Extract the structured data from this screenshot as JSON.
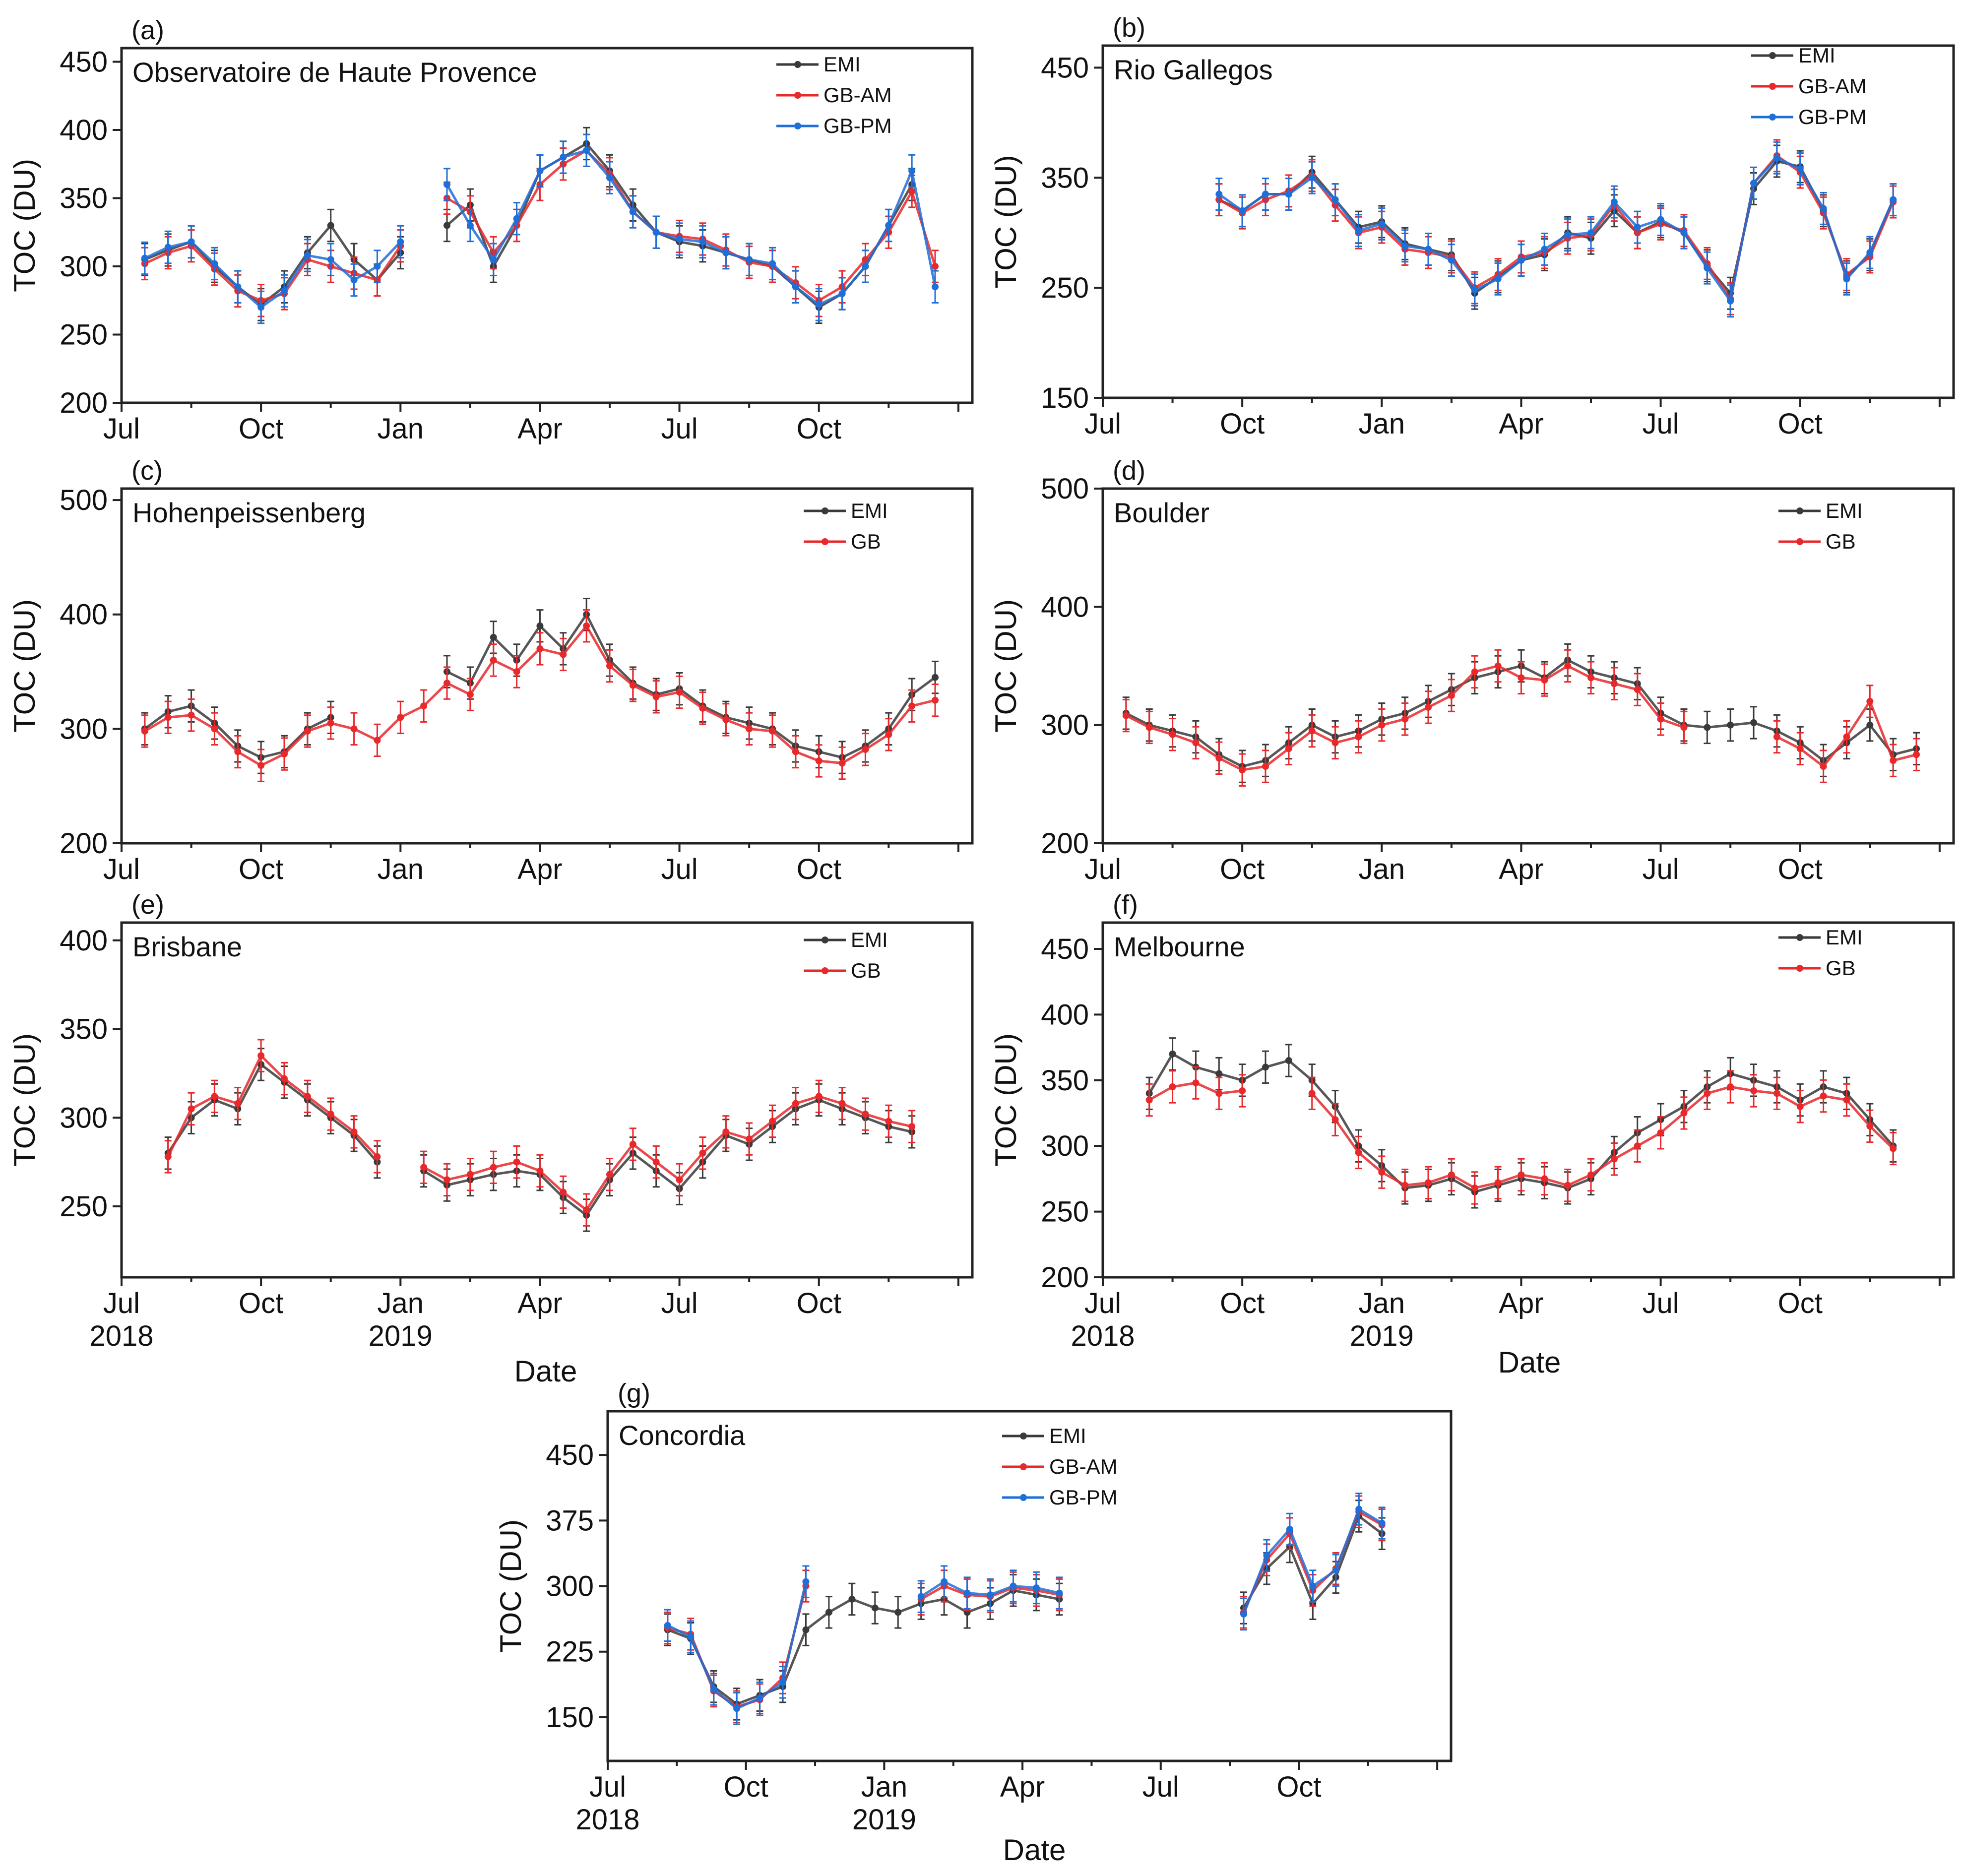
{
  "figure": {
    "date_axis_label": "Date",
    "ylabel": "TOC (DU)",
    "year_labels": [
      "2018",
      "2019"
    ]
  },
  "colors": {
    "EMI": "#3a3a3a",
    "GB": "#e8282b",
    "GB-AM": "#e8282b",
    "GB-PM": "#1f6fd8"
  },
  "chart_data": [
    {
      "type": "line",
      "panel": "(a)",
      "title": "Observatoire de Haute Provence",
      "xlabel": "",
      "ylabel": "TOC (DU)",
      "ylim": [
        200,
        460
      ],
      "yticks": [
        200,
        250,
        300,
        350,
        400,
        450
      ],
      "xticks": [
        "Jul",
        "Oct",
        "Jan",
        "Apr",
        "Jul",
        "Oct"
      ],
      "year_labels": [],
      "legend": [
        "EMI",
        "GB-AM",
        "GB-PM"
      ],
      "months": [
        0.5,
        1,
        1.5,
        2,
        2.5,
        3,
        3.5,
        4,
        4.5,
        5,
        5.5,
        6,
        6.5,
        7,
        7.5,
        8,
        8.5,
        9,
        9.5,
        10,
        10.5,
        11,
        11.5,
        12,
        12.5,
        13,
        13.5,
        14,
        14.5,
        15,
        15.5,
        16,
        16.5,
        17,
        17.5
      ],
      "series": [
        {
          "name": "EMI",
          "values": [
            305,
            312,
            318,
            300,
            285,
            272,
            285,
            310,
            330,
            305,
            290,
            310,
            null,
            330,
            345,
            300,
            330,
            370,
            380,
            390,
            370,
            345,
            325,
            318,
            315,
            310,
            305,
            300,
            285,
            270,
            280,
            300,
            330,
            360,
            null
          ]
        },
        {
          "name": "GB-AM",
          "values": [
            302,
            310,
            315,
            298,
            282,
            275,
            280,
            305,
            300,
            295,
            290,
            315,
            null,
            350,
            340,
            310,
            330,
            360,
            375,
            385,
            368,
            340,
            325,
            322,
            320,
            312,
            303,
            300,
            288,
            275,
            285,
            305,
            325,
            355,
            300
          ]
        },
        {
          "name": "GB-PM",
          "values": [
            306,
            314,
            318,
            302,
            285,
            270,
            282,
            308,
            305,
            290,
            300,
            318,
            null,
            360,
            330,
            305,
            335,
            370,
            380,
            385,
            365,
            340,
            325,
            320,
            318,
            310,
            305,
            302,
            285,
            272,
            280,
            300,
            330,
            370,
            285
          ]
        }
      ]
    },
    {
      "type": "line",
      "panel": "(b)",
      "title": "Rio Gallegos",
      "xlabel": "",
      "ylabel": "TOC (DU)",
      "ylim": [
        150,
        470
      ],
      "yticks": [
        150,
        250,
        350,
        450
      ],
      "xticks": [
        "Jul",
        "Oct",
        "Jan",
        "Apr",
        "Jul",
        "Oct"
      ],
      "year_labels": [],
      "legend": [
        "EMI",
        "GB-AM",
        "GB-PM"
      ],
      "months": [
        2.5,
        3,
        3.5,
        4,
        4.5,
        5,
        5.5,
        6,
        6.5,
        7,
        7.5,
        8,
        8.5,
        9,
        9.5,
        10,
        10.5,
        11,
        11.5,
        12,
        12.5,
        13,
        13.5,
        14,
        14.5,
        15,
        15.5,
        16,
        16.5,
        17
      ],
      "series": [
        {
          "name": "EMI",
          "values": [
            330,
            320,
            335,
            335,
            355,
            330,
            305,
            310,
            290,
            285,
            280,
            245,
            260,
            275,
            280,
            300,
            295,
            320,
            300,
            310,
            300,
            270,
            245,
            340,
            365,
            360,
            320,
            260,
            280,
            330
          ]
        },
        {
          "name": "GB-AM",
          "values": [
            330,
            318,
            330,
            338,
            352,
            325,
            300,
            305,
            285,
            282,
            278,
            250,
            262,
            278,
            282,
            295,
            298,
            325,
            300,
            308,
            302,
            272,
            240,
            345,
            370,
            355,
            318,
            262,
            278,
            328
          ]
        },
        {
          "name": "GB-PM",
          "values": [
            335,
            320,
            335,
            335,
            350,
            330,
            302,
            308,
            288,
            285,
            275,
            248,
            258,
            275,
            285,
            298,
            300,
            328,
            305,
            312,
            300,
            268,
            238,
            345,
            368,
            358,
            322,
            258,
            282,
            330
          ]
        }
      ]
    },
    {
      "type": "line",
      "panel": "(c)",
      "title": "Hohenpeissenberg",
      "xlabel": "",
      "ylabel": "TOC (DU)",
      "ylim": [
        200,
        510
      ],
      "yticks": [
        200,
        300,
        400,
        500
      ],
      "xticks": [
        "Jul",
        "Oct",
        "Jan",
        "Apr",
        "Jul",
        "Oct"
      ],
      "year_labels": [],
      "legend": [
        "EMI",
        "GB"
      ],
      "months": [
        0.5,
        1,
        1.5,
        2,
        2.5,
        3,
        3.5,
        4,
        4.5,
        5,
        5.5,
        6,
        6.5,
        7,
        7.5,
        8,
        8.5,
        9,
        9.5,
        10,
        10.5,
        11,
        11.5,
        12,
        12.5,
        13,
        13.5,
        14,
        14.5,
        15,
        15.5,
        16,
        16.5,
        17,
        17.5
      ],
      "series": [
        {
          "name": "EMI",
          "values": [
            300,
            315,
            320,
            305,
            285,
            275,
            280,
            300,
            310,
            null,
            null,
            null,
            null,
            350,
            340,
            380,
            360,
            390,
            370,
            400,
            360,
            340,
            330,
            335,
            320,
            310,
            305,
            300,
            285,
            280,
            275,
            285,
            300,
            330,
            345
          ]
        },
        {
          "name": "GB",
          "values": [
            298,
            310,
            312,
            300,
            280,
            268,
            278,
            298,
            305,
            300,
            290,
            310,
            320,
            340,
            330,
            360,
            350,
            370,
            365,
            390,
            355,
            338,
            328,
            332,
            318,
            308,
            300,
            298,
            280,
            272,
            270,
            282,
            295,
            320,
            325
          ]
        }
      ]
    },
    {
      "type": "line",
      "panel": "(d)",
      "title": "Boulder",
      "xlabel": "",
      "ylabel": "TOC (DU)",
      "ylim": [
        200,
        500
      ],
      "yticks": [
        200,
        300,
        400,
        500
      ],
      "xticks": [
        "Jul",
        "Oct",
        "Jan",
        "Apr",
        "Jul",
        "Oct"
      ],
      "year_labels": [],
      "legend": [
        "EMI",
        "GB"
      ],
      "months": [
        0.5,
        1,
        1.5,
        2,
        2.5,
        3,
        3.5,
        4,
        4.5,
        5,
        5.5,
        6,
        6.5,
        7,
        7.5,
        8,
        8.5,
        9,
        9.5,
        10,
        10.5,
        11,
        11.5,
        12,
        12.5,
        13,
        13.5,
        14,
        14.5,
        15,
        15.5,
        16,
        16.5,
        17,
        17.5
      ],
      "series": [
        {
          "name": "EMI",
          "values": [
            310,
            300,
            295,
            290,
            275,
            265,
            270,
            285,
            300,
            290,
            295,
            305,
            310,
            320,
            330,
            340,
            345,
            350,
            340,
            355,
            345,
            340,
            335,
            310,
            300,
            298,
            300,
            302,
            295,
            285,
            270,
            285,
            300,
            275,
            280
          ]
        },
        {
          "name": "GB",
          "values": [
            308,
            298,
            292,
            285,
            272,
            262,
            265,
            280,
            295,
            285,
            290,
            300,
            305,
            315,
            325,
            345,
            350,
            340,
            338,
            350,
            340,
            335,
            330,
            305,
            298,
            null,
            null,
            null,
            290,
            280,
            265,
            290,
            320,
            270,
            275
          ]
        }
      ]
    },
    {
      "type": "line",
      "panel": "(e)",
      "title": "Brisbane",
      "xlabel": "Date",
      "ylabel": "TOC (DU)",
      "ylim": [
        210,
        410
      ],
      "yticks": [
        250,
        300,
        350,
        400
      ],
      "xticks": [
        "Jul",
        "Oct",
        "Jan",
        "Apr",
        "Jul",
        "Oct"
      ],
      "year_labels": [
        "2018",
        "2019"
      ],
      "legend": [
        "EMI",
        "GB"
      ],
      "months": [
        1,
        1.5,
        2,
        2.5,
        3,
        3.5,
        4,
        4.5,
        5,
        5.5,
        6,
        6.5,
        7,
        7.5,
        8,
        8.5,
        9,
        9.5,
        10,
        10.5,
        11,
        11.5,
        12,
        12.5,
        13,
        13.5,
        14,
        14.5,
        15,
        15.5,
        16,
        16.5,
        17
      ],
      "series": [
        {
          "name": "EMI",
          "values": [
            280,
            300,
            310,
            305,
            330,
            320,
            310,
            300,
            290,
            275,
            null,
            270,
            262,
            265,
            268,
            270,
            268,
            255,
            245,
            265,
            280,
            270,
            260,
            275,
            290,
            285,
            295,
            305,
            310,
            305,
            300,
            295,
            292
          ]
        },
        {
          "name": "GB",
          "values": [
            278,
            305,
            312,
            308,
            335,
            322,
            312,
            302,
            292,
            278,
            null,
            272,
            265,
            268,
            272,
            275,
            270,
            258,
            248,
            268,
            285,
            275,
            265,
            280,
            292,
            288,
            298,
            308,
            312,
            308,
            302,
            298,
            295
          ]
        }
      ]
    },
    {
      "type": "line",
      "panel": "(f)",
      "title": "Melbourne",
      "xlabel": "Date",
      "ylabel": "TOC (DU)",
      "ylim": [
        200,
        470
      ],
      "yticks": [
        200,
        250,
        300,
        350,
        400,
        450
      ],
      "xticks": [
        "Jul",
        "Oct",
        "Jan",
        "Apr",
        "Jul",
        "Oct"
      ],
      "year_labels": [
        "2018",
        "2019"
      ],
      "legend": [
        "EMI",
        "GB"
      ],
      "months": [
        1,
        1.5,
        2,
        2.5,
        3,
        3.5,
        4,
        4.5,
        5,
        5.5,
        6,
        6.5,
        7,
        7.5,
        8,
        8.5,
        9,
        9.5,
        10,
        10.5,
        11,
        11.5,
        12,
        12.5,
        13,
        13.5,
        14,
        14.5,
        15,
        15.5,
        16,
        16.5,
        17
      ],
      "series": [
        {
          "name": "EMI",
          "values": [
            340,
            370,
            360,
            355,
            350,
            360,
            365,
            350,
            330,
            300,
            285,
            268,
            270,
            275,
            265,
            270,
            275,
            272,
            268,
            275,
            295,
            310,
            320,
            330,
            345,
            355,
            350,
            345,
            335,
            345,
            340,
            320,
            300
          ]
        },
        {
          "name": "GB",
          "values": [
            335,
            345,
            348,
            340,
            342,
            null,
            null,
            340,
            320,
            295,
            280,
            270,
            272,
            278,
            268,
            272,
            278,
            275,
            270,
            278,
            290,
            300,
            310,
            325,
            340,
            345,
            342,
            340,
            330,
            338,
            335,
            315,
            298
          ]
        }
      ]
    },
    {
      "type": "line",
      "panel": "(g)",
      "title": "Concordia",
      "xlabel": "Date",
      "ylabel": "TOC (DU)",
      "ylim": [
        100,
        500
      ],
      "yticks": [
        150,
        225,
        300,
        375,
        450
      ],
      "xticks": [
        "Jul",
        "Oct",
        "Jan",
        "Apr",
        "Jul",
        "Oct"
      ],
      "year_labels": [
        "2018",
        "2019"
      ],
      "legend": [
        "EMI",
        "GB-AM",
        "GB-PM"
      ],
      "months": [
        1.3,
        1.8,
        2.3,
        2.8,
        3.3,
        3.8,
        4.3,
        4.8,
        5.3,
        5.8,
        6.3,
        6.8,
        7.3,
        7.8,
        8.3,
        8.8,
        9.3,
        9.8,
        10.3,
        10.8,
        11.3,
        11.8,
        12.3,
        12.8,
        13.3,
        13.8,
        14.3,
        14.8,
        15.3,
        15.8,
        16.3,
        16.8
      ],
      "series": [
        {
          "name": "EMI",
          "values": [
            250,
            240,
            185,
            165,
            175,
            185,
            250,
            270,
            285,
            275,
            270,
            280,
            285,
            270,
            280,
            295,
            290,
            285,
            null,
            null,
            null,
            null,
            null,
            null,
            null,
            275,
            320,
            345,
            280,
            310,
            380,
            360
          ]
        },
        {
          "name": "GB-AM",
          "values": [
            252,
            245,
            180,
            162,
            170,
            195,
            300,
            null,
            null,
            null,
            null,
            285,
            300,
            290,
            288,
            298,
            295,
            290,
            null,
            null,
            null,
            null,
            null,
            null,
            null,
            270,
            330,
            360,
            295,
            320,
            385,
            370
          ]
        },
        {
          "name": "GB-PM",
          "values": [
            255,
            242,
            182,
            160,
            172,
            190,
            305,
            null,
            null,
            null,
            null,
            288,
            305,
            292,
            290,
            300,
            298,
            292,
            null,
            null,
            null,
            null,
            null,
            null,
            null,
            268,
            335,
            365,
            300,
            318,
            388,
            372
          ]
        }
      ]
    }
  ]
}
